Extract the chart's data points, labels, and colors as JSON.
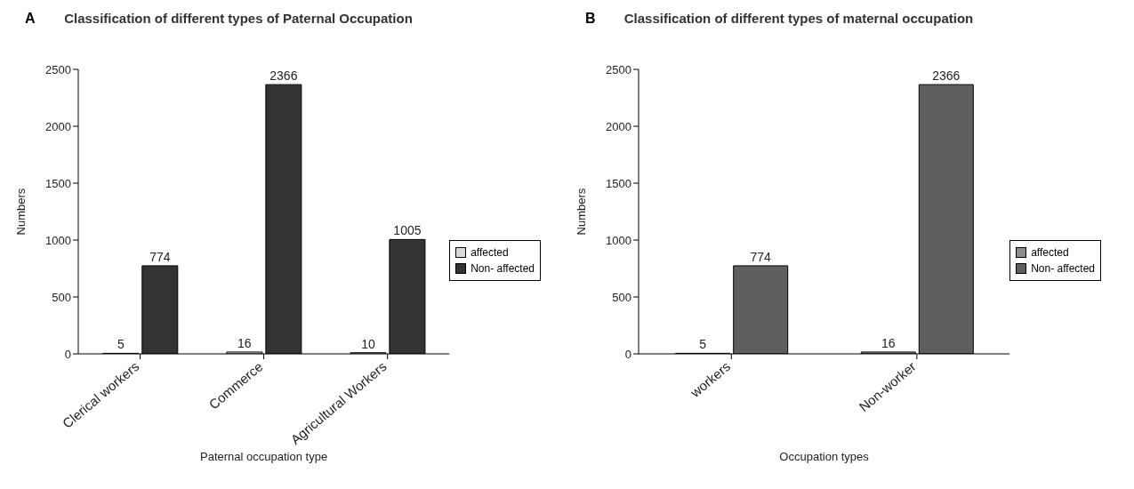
{
  "chart_data": [
    {
      "type": "bar",
      "title": "Classification of different types of Paternal Occupation",
      "xlabel": "Paternal occupation type",
      "ylabel": "Numbers",
      "annotations": [
        "A"
      ],
      "categories": [
        "Clerical workers",
        "Commerce",
        "Agricultural Workers"
      ],
      "series": [
        {
          "name": "affected",
          "color": "#d9d9d9",
          "values": [
            5,
            16,
            10
          ]
        },
        {
          "name": "Non- affected",
          "color": "#333333",
          "values": [
            774,
            2366,
            1005
          ]
        }
      ],
      "ylim": [
        0,
        2500
      ],
      "yticks": [
        0,
        500,
        1000,
        1500,
        2000,
        2500
      ],
      "data_labels": true,
      "legend": "right",
      "grid": false
    },
    {
      "type": "bar",
      "title": "Classification of different types of maternal occupation",
      "xlabel": "Occupation types",
      "ylabel": "Numbers",
      "annotations": [
        "B"
      ],
      "categories": [
        "workers",
        "Non-worker"
      ],
      "series": [
        {
          "name": "affected",
          "color": "#8c8c8c",
          "values": [
            5,
            16
          ]
        },
        {
          "name": "Non- affected",
          "color": "#5f5f5f",
          "values": [
            774,
            2366
          ]
        }
      ],
      "ylim": [
        0,
        2500
      ],
      "yticks": [
        0,
        500,
        1000,
        1500,
        2000,
        2500
      ],
      "data_labels": true,
      "legend": "right",
      "grid": false
    }
  ]
}
